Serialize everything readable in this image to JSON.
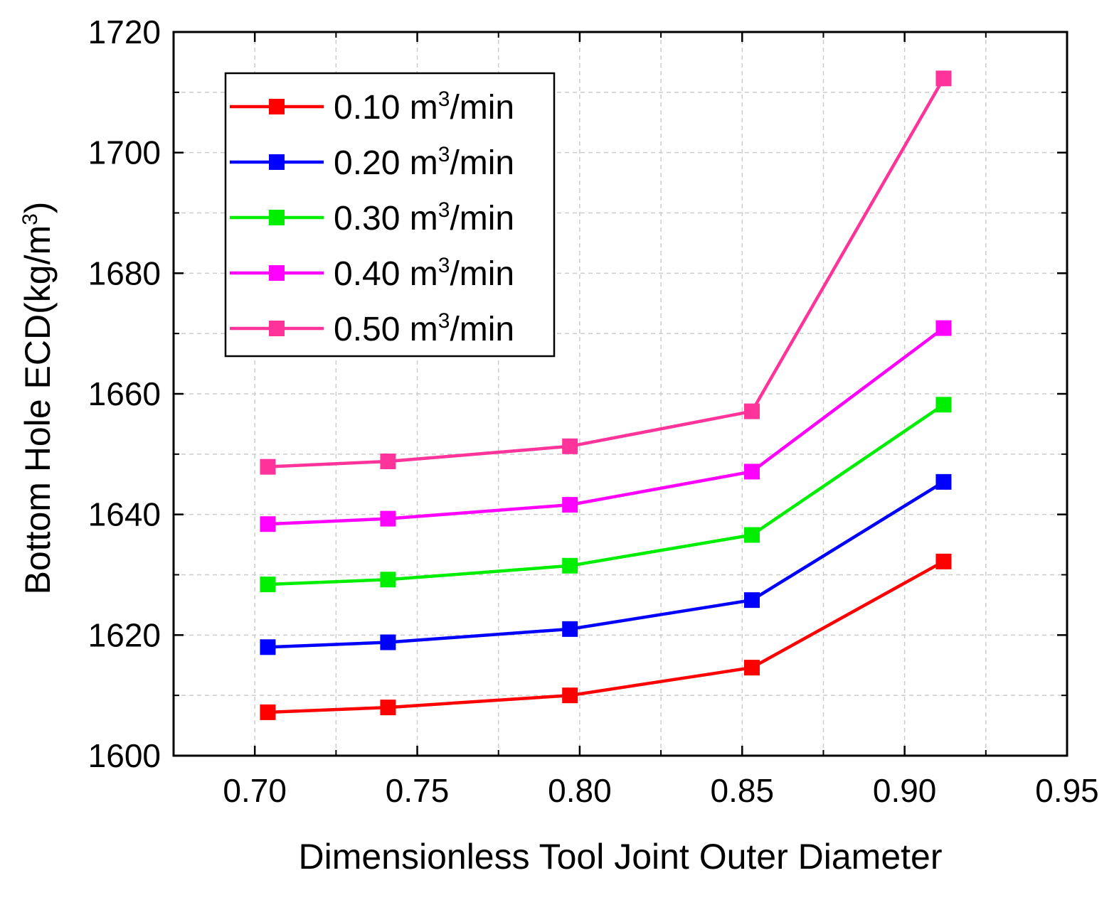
{
  "chart_data": {
    "type": "line",
    "title": "",
    "xlabel": "Dimensionless Tool Joint Outer Diameter",
    "ylabel": {
      "main": "Bottom Hole ECD(kg/m",
      "sup": "3",
      "end": ")"
    },
    "xlim": [
      0.675,
      0.95
    ],
    "ylim": [
      1600,
      1720
    ],
    "xticks": [
      "0.70",
      "0.75",
      "0.80",
      "0.85",
      "0.90",
      "0.95"
    ],
    "xtick_values": [
      0.7,
      0.75,
      0.8,
      0.85,
      0.9,
      0.95
    ],
    "yticks": [
      "1600",
      "1620",
      "1640",
      "1660",
      "1680",
      "1700",
      "1720"
    ],
    "ytick_values": [
      1600,
      1620,
      1640,
      1660,
      1680,
      1700,
      1720
    ],
    "grid": true,
    "legend_position": "top-left",
    "x": [
      0.704,
      0.741,
      0.797,
      0.853,
      0.912
    ],
    "series": [
      {
        "name": {
          "main": "0.10 m",
          "sup": "3",
          "end": "/min"
        },
        "color": "#ff0000",
        "values": [
          1607.2,
          1608.0,
          1610.0,
          1614.6,
          1632.2
        ]
      },
      {
        "name": {
          "main": "0.20 m",
          "sup": "3",
          "end": "/min"
        },
        "color": "#0000ff",
        "values": [
          1618.0,
          1618.8,
          1621.0,
          1625.8,
          1645.4
        ]
      },
      {
        "name": {
          "main": "0.30 m",
          "sup": "3",
          "end": "/min"
        },
        "color": "#00ee00",
        "values": [
          1628.4,
          1629.2,
          1631.5,
          1636.6,
          1658.2
        ]
      },
      {
        "name": {
          "main": "0.40 m",
          "sup": "3",
          "end": "/min"
        },
        "color": "#ff00ff",
        "values": [
          1638.4,
          1639.3,
          1641.6,
          1647.1,
          1670.9
        ]
      },
      {
        "name": {
          "main": "0.50 m",
          "sup": "3",
          "end": "/min"
        },
        "color": "#ff3399",
        "values": [
          1647.9,
          1648.8,
          1651.3,
          1657.1,
          1712.3
        ]
      }
    ]
  }
}
